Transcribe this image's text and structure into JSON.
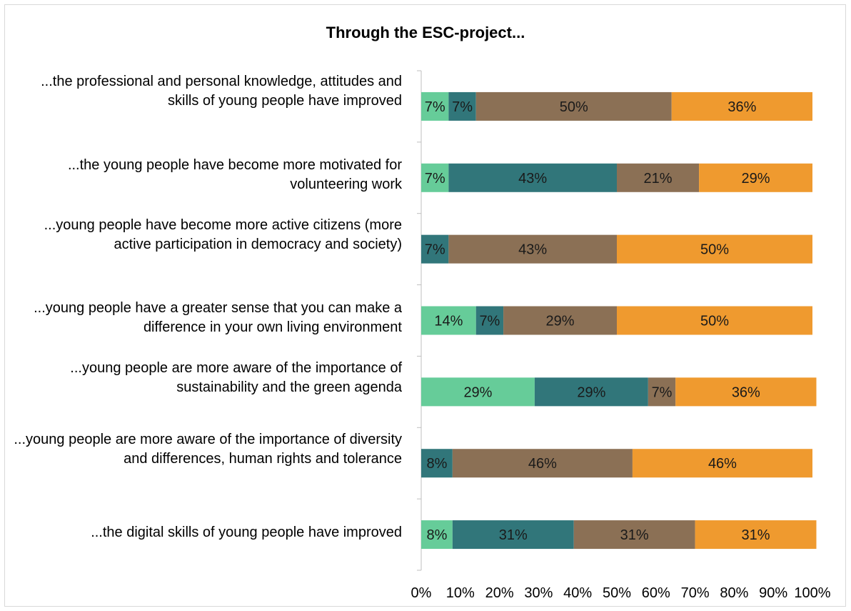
{
  "chart_data": {
    "type": "bar",
    "orientation": "horizontal",
    "stacked": "percent",
    "title": "Through the ESC-project...",
    "categories": [
      "...the professional and personal knowledge, attitudes and skills of young people have improved",
      "...the young people have become more motivated for volunteering work",
      "...young people have become more active citizens (more active participation in democracy and society)",
      "...young people have a greater sense that you can make a difference in your own living environment",
      "...young people are more aware of the importance of sustainability and the green agenda",
      "...young people are more aware of the importance of diversity and differences, human rights and tolerance",
      "...the digital skills of young people have improved"
    ],
    "series": [
      {
        "color": "#66cc99",
        "values": [
          7,
          7,
          0,
          14,
          29,
          0,
          8
        ]
      },
      {
        "color": "#31767a",
        "values": [
          7,
          43,
          7,
          7,
          29,
          8,
          31
        ]
      },
      {
        "color": "#8b7055",
        "values": [
          50,
          21,
          43,
          29,
          7,
          46,
          31
        ]
      },
      {
        "color": "#ef9a2f",
        "values": [
          36,
          29,
          50,
          50,
          36,
          46,
          31
        ]
      }
    ],
    "value_labels": [
      [
        "7%",
        "7%",
        "50%",
        "36%"
      ],
      [
        "7%",
        "43%",
        "21%",
        "29%"
      ],
      [
        "",
        "7%",
        "43%",
        "50%"
      ],
      [
        "14%",
        "7%",
        "29%",
        "50%"
      ],
      [
        "29%",
        "29%",
        "7%",
        "36%"
      ],
      [
        "",
        "8%",
        "46%",
        "46%"
      ],
      [
        "8%",
        "31%",
        "31%",
        "31%"
      ]
    ],
    "xlim": [
      0,
      100
    ],
    "x_ticks": [
      "0%",
      "10%",
      "20%",
      "30%",
      "40%",
      "50%",
      "60%",
      "70%",
      "80%",
      "90%",
      "100%"
    ],
    "legend": "none",
    "grid": false
  }
}
